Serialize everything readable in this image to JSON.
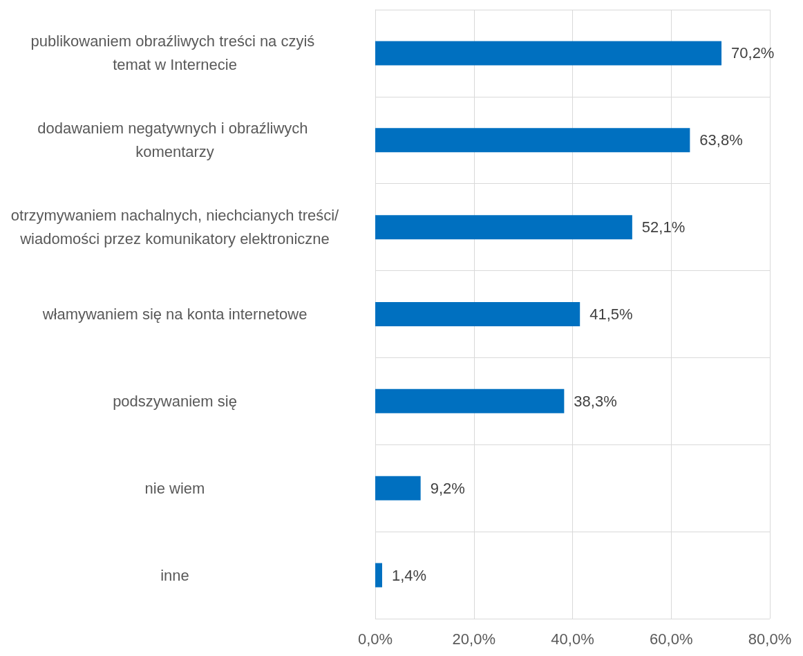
{
  "chart_data": {
    "type": "bar",
    "orientation": "horizontal",
    "categories": [
      "publikowaniem obraźliwych treści na czyiś temat w Internecie",
      "dodawaniem negatywnych i obraźliwych komentarzy",
      "otrzymywaniem nachalnych, niechcianych treści/wiadomości przez komunikatory elektroniczne",
      "włamywaniem się na konta internetowe",
      "podszywaniem się",
      "nie wiem",
      "inne"
    ],
    "values": [
      70.2,
      63.8,
      52.1,
      41.5,
      38.3,
      9.2,
      1.4
    ],
    "value_labels": [
      "70,2%",
      "63,8%",
      "52,1%",
      "41,5%",
      "38,3%",
      "9,2%",
      "1,4%"
    ],
    "color": "#0070c0",
    "xlim": [
      0,
      80
    ],
    "xticks": [
      {
        "value": 0,
        "label": "0,0%"
      },
      {
        "value": 20,
        "label": "20,0%"
      },
      {
        "value": 40,
        "label": "40,0%"
      },
      {
        "value": 60,
        "label": "60,0%"
      },
      {
        "value": 80,
        "label": "80,0%"
      }
    ],
    "grid": true
  }
}
